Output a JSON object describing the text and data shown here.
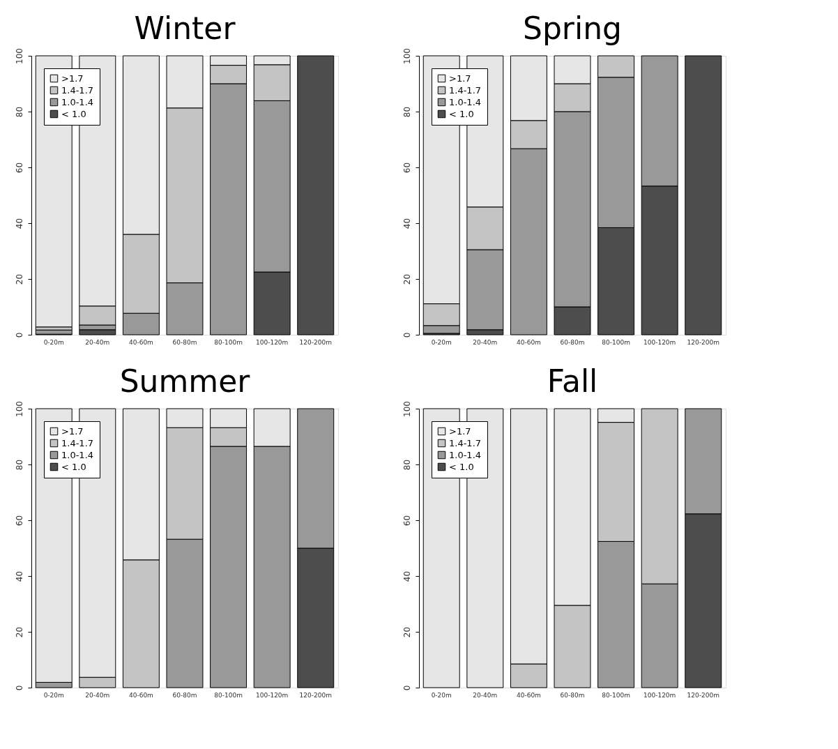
{
  "chart_data": [
    {
      "type": "bar",
      "title": "Winter",
      "stacked": true,
      "legend": "top left",
      "grid": false,
      "ylim": [
        0,
        100
      ],
      "yticks": [
        0,
        20,
        40,
        60,
        80,
        100
      ],
      "categories": [
        "0-20m",
        "20-40m",
        "40-60m",
        "60-80m",
        "80-100m",
        "100-120m",
        "120-200m"
      ],
      "series": [
        {
          "name": "< 1.0",
          "color": "#4d4d4d",
          "values": [
            0.2,
            1.8,
            0,
            0,
            0,
            22.5,
            100
          ]
        },
        {
          "name": "1.0-1.4",
          "color": "#999999",
          "values": [
            1.5,
            1.7,
            7.7,
            18.6,
            90,
            61.4,
            0
          ]
        },
        {
          "name": "1.4-1.7",
          "color": "#c4c4c4",
          "values": [
            1.1,
            6.8,
            28.3,
            62.7,
            6.6,
            12.9,
            0
          ]
        },
        {
          "name": ">1.7",
          "color": "#e6e6e6",
          "values": [
            97.2,
            89.7,
            64,
            18.7,
            3.4,
            3.2,
            0
          ]
        }
      ]
    },
    {
      "type": "bar",
      "title": "Spring",
      "stacked": true,
      "legend": "top left",
      "grid": false,
      "ylim": [
        0,
        100
      ],
      "yticks": [
        0,
        20,
        40,
        60,
        80,
        100
      ],
      "categories": [
        "0-20m",
        "20-40m",
        "40-60m",
        "60-80m",
        "80-100m",
        "100-120m",
        "120-200m"
      ],
      "series": [
        {
          "name": "< 1.0",
          "color": "#4d4d4d",
          "values": [
            0.5,
            1.8,
            0,
            10,
            38.4,
            53.3,
            100
          ]
        },
        {
          "name": "1.0-1.4",
          "color": "#999999",
          "values": [
            2.8,
            28.7,
            66.7,
            70,
            53.9,
            46.7,
            0
          ]
        },
        {
          "name": "1.4-1.7",
          "color": "#c4c4c4",
          "values": [
            7.8,
            15.3,
            10.1,
            10,
            7.7,
            0,
            0
          ]
        },
        {
          "name": ">1.7",
          "color": "#e6e6e6",
          "values": [
            88.9,
            54.2,
            23.2,
            10,
            0,
            0,
            0
          ]
        }
      ]
    },
    {
      "type": "bar",
      "title": "Summer",
      "stacked": true,
      "legend": "top left",
      "grid": false,
      "ylim": [
        0,
        100
      ],
      "yticks": [
        0,
        20,
        40,
        60,
        80,
        100
      ],
      "categories": [
        "0-20m",
        "20-40m",
        "40-60m",
        "60-80m",
        "80-100m",
        "100-120m",
        "120-200m"
      ],
      "series": [
        {
          "name": "< 1.0",
          "color": "#4d4d4d",
          "values": [
            0,
            0,
            0,
            0,
            0,
            0,
            50
          ]
        },
        {
          "name": "1.0-1.4",
          "color": "#999999",
          "values": [
            1.9,
            0,
            0,
            53.2,
            86.5,
            86.5,
            50
          ]
        },
        {
          "name": "1.4-1.7",
          "color": "#c4c4c4",
          "values": [
            0,
            3.7,
            45.8,
            40,
            6.7,
            0,
            0
          ]
        },
        {
          "name": ">1.7",
          "color": "#e6e6e6",
          "values": [
            98.1,
            96.3,
            54.2,
            6.8,
            6.8,
            13.5,
            0
          ]
        }
      ]
    },
    {
      "type": "bar",
      "title": "Fall",
      "stacked": true,
      "legend": "top left",
      "grid": false,
      "ylim": [
        0,
        100
      ],
      "yticks": [
        0,
        20,
        40,
        60,
        80,
        100
      ],
      "categories": [
        "0-20m",
        "20-40m",
        "40-60m",
        "60-80m",
        "80-100m",
        "100-120m",
        "120-200m"
      ],
      "series": [
        {
          "name": "< 1.0",
          "color": "#4d4d4d",
          "values": [
            0,
            0,
            0,
            0,
            0,
            0,
            62.3
          ]
        },
        {
          "name": "1.0-1.4",
          "color": "#999999",
          "values": [
            0,
            0,
            0,
            0,
            52.4,
            37.2,
            37.7
          ]
        },
        {
          "name": "1.4-1.7",
          "color": "#c4c4c4",
          "values": [
            0,
            0,
            8.5,
            29.5,
            42.7,
            62.8,
            0
          ]
        },
        {
          "name": ">1.7",
          "color": "#e6e6e6",
          "values": [
            100,
            100,
            91.5,
            70.5,
            4.9,
            0,
            0
          ]
        }
      ]
    }
  ]
}
